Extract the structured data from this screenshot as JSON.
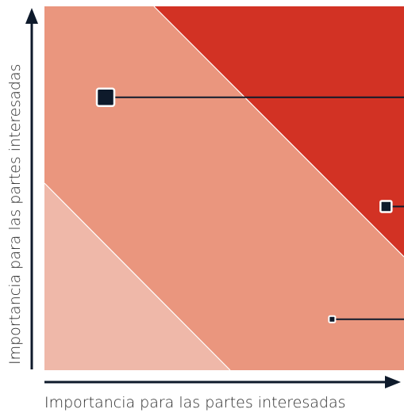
{
  "chart_data": {
    "type": "scatter",
    "xlabel": "Importancia para las partes interesadas",
    "ylabel": "Importancia para las partes interesadas",
    "xlim": [
      0,
      100
    ],
    "ylim": [
      0,
      100
    ],
    "grid": false,
    "zones": [
      {
        "name": "",
        "color": "#efb8a9"
      },
      {
        "name": "",
        "color": "#ea967e"
      },
      {
        "name": "",
        "color": "#d23224"
      }
    ],
    "points": [
      {
        "x": 17,
        "y": 75,
        "size": "large"
      },
      {
        "x": 95,
        "y": 45,
        "size": "medium"
      },
      {
        "x": 80,
        "y": 14,
        "size": "small"
      }
    ]
  },
  "colors": {
    "axis": "#0e1a2b",
    "marker": "#0e1a2b"
  }
}
